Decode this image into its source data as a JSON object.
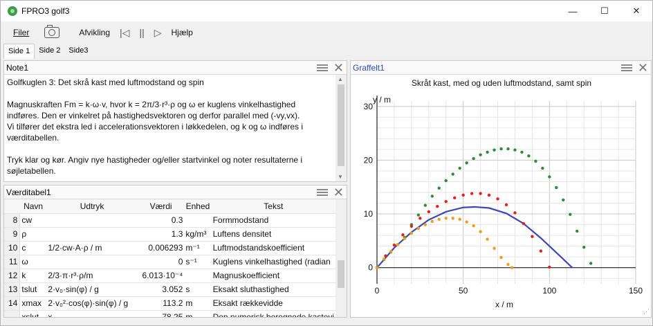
{
  "window": {
    "title": "FPRO3 golf3",
    "controls": {
      "minimize": "—",
      "maximize": "☐",
      "close": "✕"
    }
  },
  "menu": {
    "filer": "Filer",
    "afvikling": "Afvikling",
    "hjaelp": "Hjælp"
  },
  "toolbar_icons": [
    "camera-icon",
    "step-back-icon",
    "pause-icon",
    "play-icon"
  ],
  "tabs": [
    "Side 1",
    "Side 2",
    "Side3"
  ],
  "note": {
    "title": "Note1",
    "lines": [
      "Golfkuglen 3: Det skrå kast med luftmodstand og spin",
      "",
      "Magnuskraften Fm = k·ω·v, hvor k = 2π/3·r³·ρ og ω er kuglens vinkelhastighed",
      "indføres. Den er vinkelret på hastighedsvektoren og derfor parallel med (-vy,vx).",
      "Vi tilfører det ekstra led i accelerationsvektoren i løkkedelen, og k og ω indføres i",
      "værditabellen.",
      "",
      "Tryk klar og kør. Angiv nye hastigheder og/eller startvinkel og noter resultaterne i",
      "søjletabellen."
    ]
  },
  "table": {
    "title": "Værditabel1",
    "headers": [
      "",
      "Navn",
      "Udtryk",
      "Værdi",
      "Enhed",
      "Tekst"
    ],
    "rows": [
      [
        "8",
        "cw",
        "",
        "0.3",
        "",
        "Formmodstand"
      ],
      [
        "9",
        "ρ",
        "",
        "1.3",
        "kg/m³",
        "Luftens densitet"
      ],
      [
        "10",
        "c",
        "1/2·cw·A·ρ / m",
        "0.006293",
        "m⁻¹",
        "Luftmodstandskoefficient"
      ],
      [
        "11",
        "ω",
        "",
        "0",
        "s⁻¹",
        "Kuglens vinkelhastighed (radian"
      ],
      [
        "12",
        "k",
        "2/3·π·r³·ρ/m",
        "6.013·10⁻⁴",
        "",
        "Magnuskoefficient"
      ],
      [
        "13",
        "tslut",
        "2·v₀·sin(φ) / g",
        "3.052",
        "s",
        "Eksakt sluthastighed"
      ],
      [
        "14",
        "xmax",
        "2·v₀²·cos(φ)·sin(φ) / g",
        "113.2",
        "m",
        "Eksakt rækkevidde"
      ],
      [
        "",
        "xslut",
        "x",
        "78.25",
        "m",
        "Den numerisk beregnede kastevi"
      ]
    ]
  },
  "graph": {
    "panel_title": "Graffelt1"
  },
  "chart_data": {
    "type": "scatter",
    "title": "Skråt kast, med og uden luftmodstand, samt spin",
    "xlabel": "x / m",
    "ylabel": "y / m",
    "xlim": [
      0,
      150
    ],
    "ylim": [
      -3,
      31
    ],
    "xticks": [
      0,
      50,
      100,
      150
    ],
    "yticks": [
      0,
      10,
      20,
      30
    ],
    "grid": true,
    "series": [
      {
        "color": "#3b47b8",
        "style": "line",
        "x": [
          0,
          10,
          20,
          30,
          40,
          50,
          56.6,
          65,
          75,
          85,
          95,
          105,
          113.2
        ],
        "y": [
          0,
          3.7,
          6.6,
          8.9,
          10.4,
          11.2,
          11.3,
          11.1,
          10.1,
          8.2,
          5.5,
          2.5,
          0
        ]
      },
      {
        "color": "#2e8b3a",
        "style": "dots",
        "x": [
          0,
          4,
          8,
          12,
          16,
          20,
          24,
          28,
          32,
          36,
          40,
          44,
          48,
          52,
          56,
          60,
          64,
          68,
          72,
          76,
          80,
          84,
          88,
          92,
          96,
          100,
          104,
          108,
          112,
          116,
          120,
          124
        ],
        "y": [
          0,
          1.5,
          2.9,
          4.3,
          5.6,
          8.0,
          9.8,
          11.6,
          13.3,
          14.8,
          16.2,
          17.4,
          18.5,
          19.5,
          20.3,
          21.0,
          21.5,
          21.9,
          22.1,
          22.1,
          21.9,
          21.5,
          20.8,
          19.8,
          18.5,
          16.9,
          14.9,
          12.6,
          9.9,
          6.8,
          3.8,
          0.8
        ]
      },
      {
        "color": "#e0231b",
        "style": "dots",
        "x": [
          0,
          5,
          10,
          15,
          20,
          25,
          30,
          35,
          40,
          45,
          50,
          55,
          60,
          65,
          70,
          75,
          80,
          85,
          90,
          95,
          100
        ],
        "y": [
          0,
          2.2,
          4.2,
          6.1,
          7.7,
          9.2,
          10.4,
          11.4,
          12.3,
          13.0,
          13.5,
          13.8,
          13.8,
          13.5,
          12.8,
          11.7,
          10.2,
          8.2,
          5.8,
          3.1,
          0.1
        ]
      },
      {
        "color": "#f49a1e",
        "style": "dots",
        "x": [
          0,
          4,
          8,
          12,
          16,
          20,
          24,
          28,
          32,
          36,
          40,
          44,
          48,
          52,
          56,
          60,
          64,
          68,
          72,
          76,
          78.25
        ],
        "y": [
          0,
          1.6,
          3.0,
          4.3,
          5.4,
          6.4,
          7.3,
          8.0,
          8.6,
          9.0,
          9.2,
          9.2,
          9.0,
          8.5,
          7.8,
          6.7,
          5.3,
          3.6,
          1.9,
          0.6,
          0
        ]
      }
    ]
  }
}
